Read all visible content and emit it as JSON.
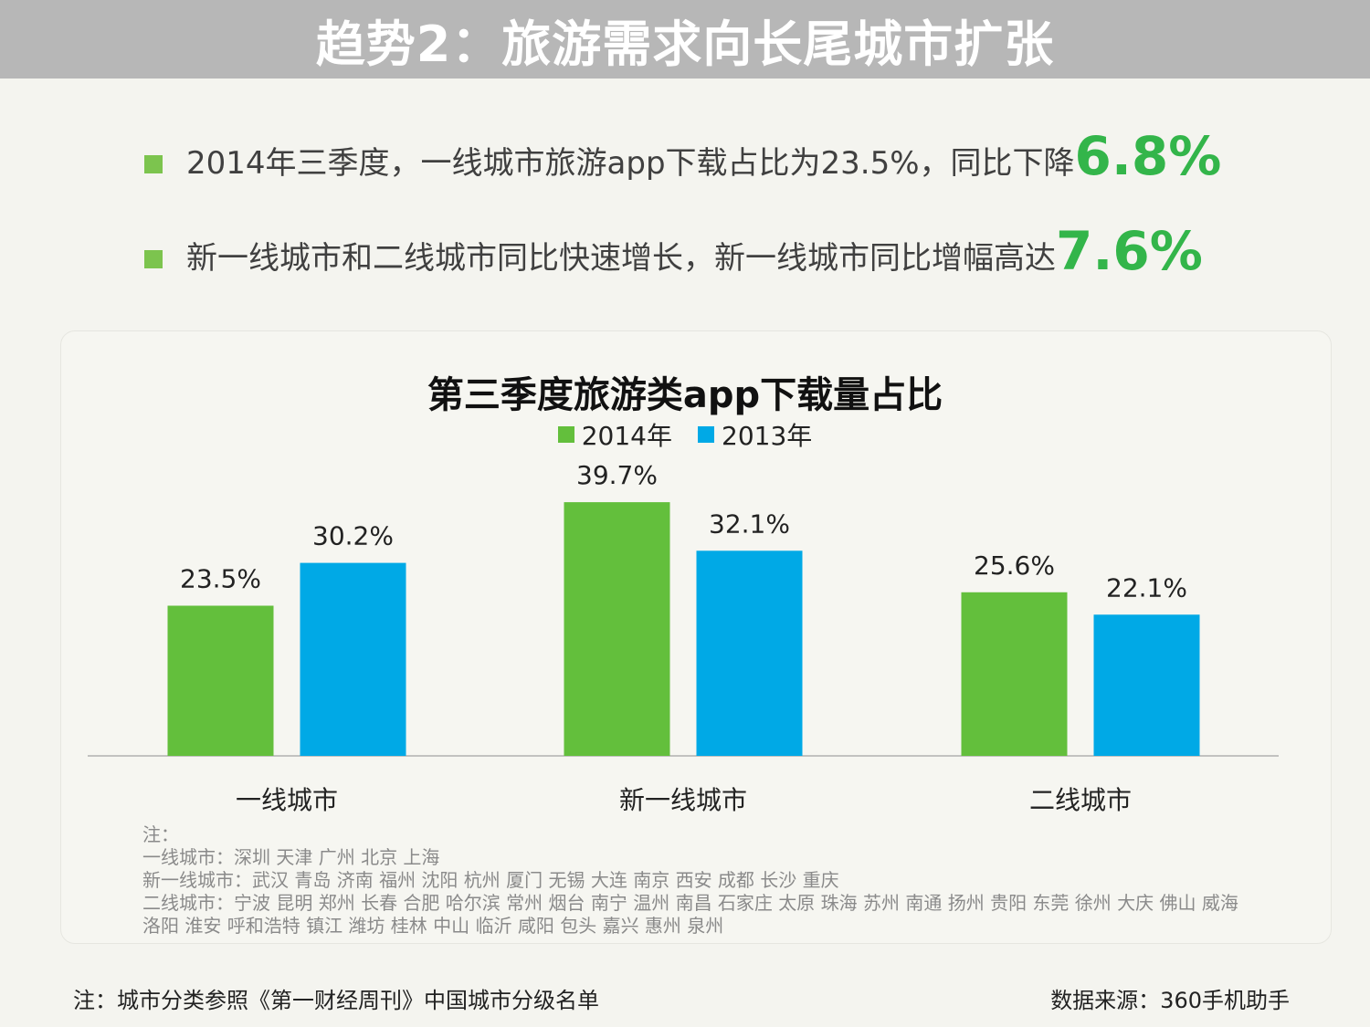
{
  "header": {
    "title": "趋势2：旅游需求向长尾城市扩张"
  },
  "bullets": [
    {
      "text": "2014年三季度，一线城市旅游app下载占比为23.5%，同比下降",
      "highlight": "6.8%"
    },
    {
      "text": "新一线城市和二线城市同比快速增长，新一线城市同比增幅高达",
      "highlight": "7.6%"
    }
  ],
  "colors": {
    "series_2014": "#63bf3c",
    "series_2013": "#00a9e6",
    "highlight": "#33b54a",
    "header_bg": "#b7b7b7"
  },
  "chart_data": {
    "type": "bar",
    "title": "第三季度旅游类app下载量占比",
    "categories": [
      "一线城市",
      "新一线城市",
      "二线城市"
    ],
    "series": [
      {
        "name": "2014年",
        "values": [
          23.5,
          39.7,
          25.6
        ],
        "labels": [
          "23.5%",
          "39.7%",
          "25.6%"
        ]
      },
      {
        "name": "2013年",
        "values": [
          30.2,
          32.1,
          22.1
        ],
        "labels": [
          "30.2%",
          "32.1%",
          "22.1%"
        ]
      }
    ],
    "ylim": [
      0,
      40
    ],
    "grid": false,
    "legend": "top-center"
  },
  "notes": {
    "heading": "注：",
    "lines": [
      "一线城市：深圳 天津 广州 北京 上海",
      "新一线城市：武汉 青岛 济南 福州 沈阳 杭州 厦门 无锡 大连 南京 西安 成都 长沙 重庆",
      "二线城市：宁波 昆明 郑州 长春 合肥 哈尔滨 常州 烟台 南宁 温州 南昌 石家庄 太原 珠海 苏州 南通 扬州 贵阳 东莞 徐州 大庆 佛山 威海",
      "洛阳 淮安 呼和浩特 镇江 潍坊 桂林 中山 临沂 咸阳 包头 嘉兴 惠州 泉州"
    ]
  },
  "footer": {
    "left": "注：城市分类参照《第一财经周刊》中国城市分级名单",
    "right": "数据来源：360手机助手"
  }
}
